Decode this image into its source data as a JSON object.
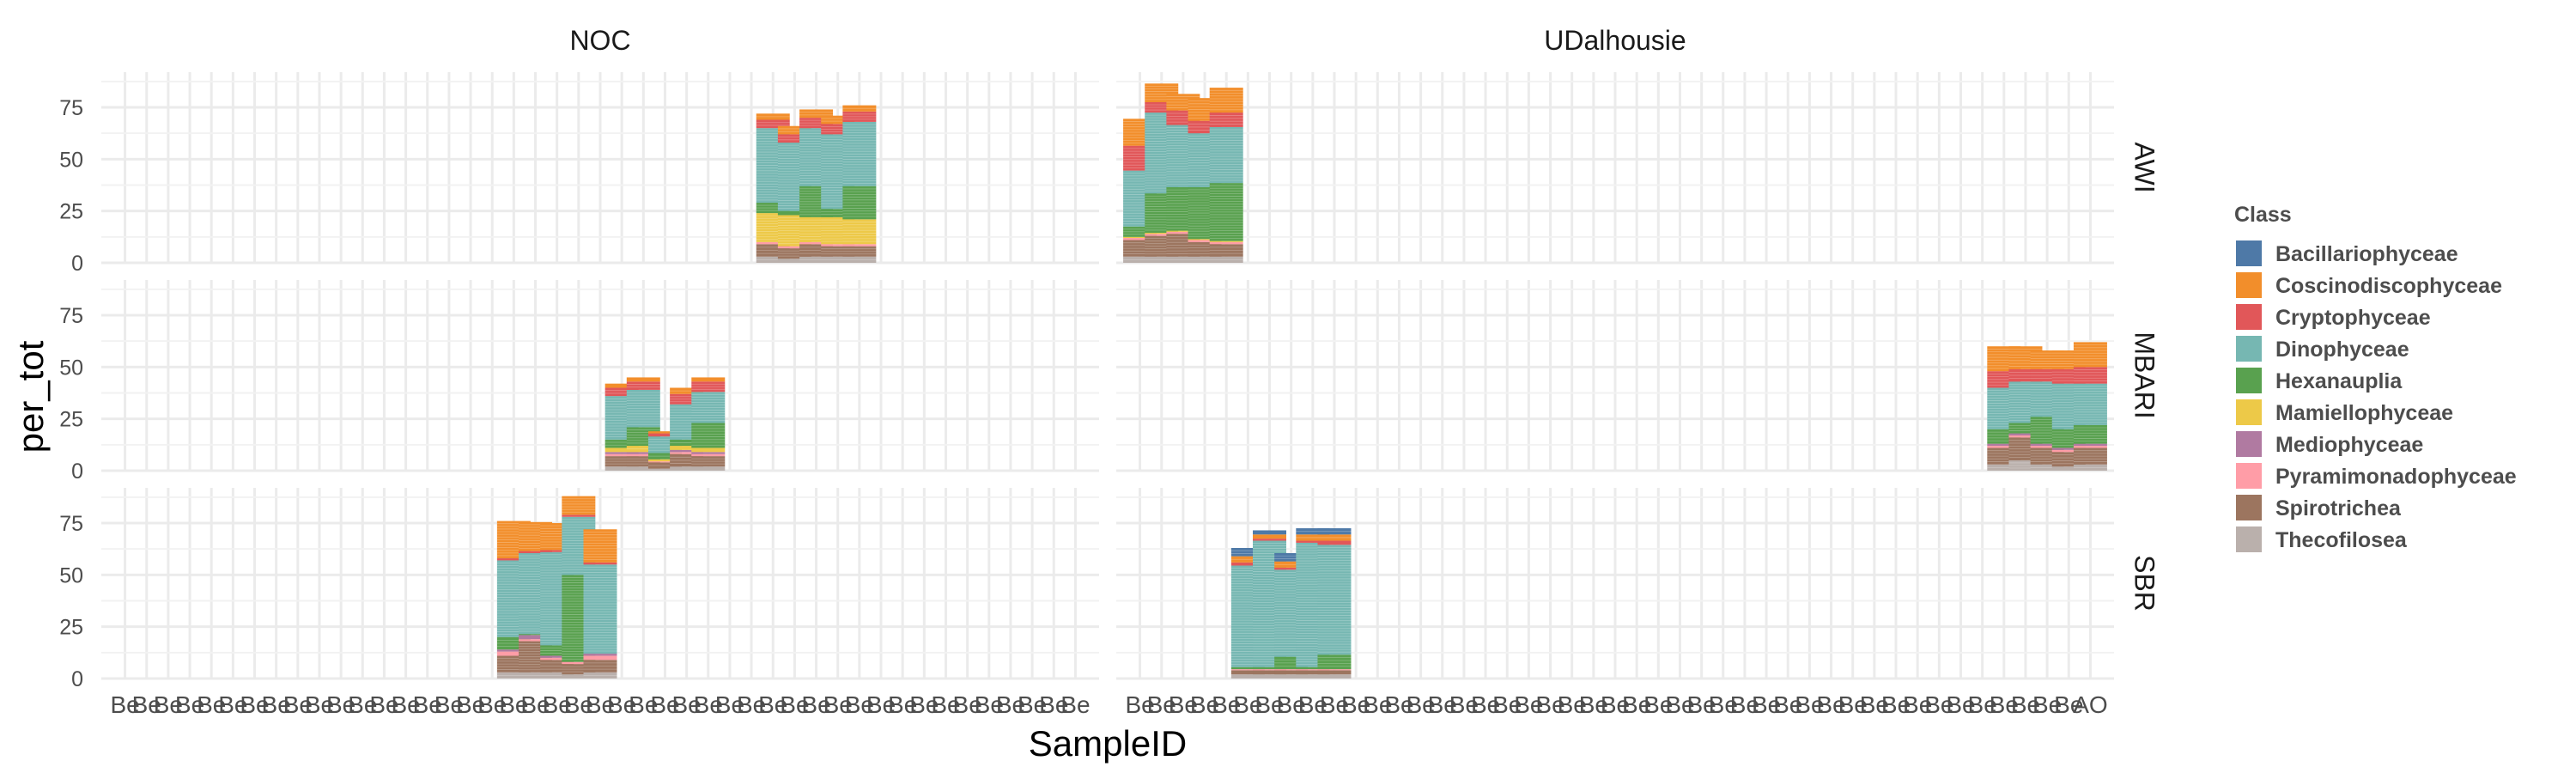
{
  "chart_data": {
    "type": "bar",
    "stacked": true,
    "facets": {
      "columns": [
        "NOC",
        "UDalhousie"
      ],
      "rows": [
        "AWI",
        "MBARI",
        "SBR"
      ]
    },
    "xlabel": "SampleID",
    "ylabel": "per_tot",
    "ylim": [
      0,
      92
    ],
    "yticks": [
      0,
      25,
      50,
      75
    ],
    "grid": true,
    "legend": {
      "title": "Class",
      "position": "right",
      "entries": [
        {
          "name": "Bacillariophyceae",
          "color": "#4e79a7"
        },
        {
          "name": "Coscinodiscophyceae",
          "color": "#f28e2b"
        },
        {
          "name": "Cryptophyceae",
          "color": "#e15759"
        },
        {
          "name": "Dinophyceae",
          "color": "#76b7b2"
        },
        {
          "name": "Hexanauplia",
          "color": "#59a14f"
        },
        {
          "name": "Mamiellophyceae",
          "color": "#edc948"
        },
        {
          "name": "Mediophyceae",
          "color": "#b07aa1"
        },
        {
          "name": "Pyramimonadophyceae",
          "color": "#ff9da7"
        },
        {
          "name": "Spirotrichea",
          "color": "#9c755f"
        },
        {
          "name": "Thecofilosea",
          "color": "#bab0ac"
        }
      ]
    },
    "class_order": [
      "Thecofilosea",
      "Spirotrichea",
      "Pyramimonadophyceae",
      "Mediophyceae",
      "Mamiellophyceae",
      "Hexanauplia",
      "Dinophyceae",
      "Cryptophyceae",
      "Coscinodiscophyceae",
      "Bacillariophyceae"
    ],
    "x_tick_labels": {
      "NOC": [
        "Be",
        "Be",
        "Be",
        "Be",
        "Be",
        "Be",
        "Be",
        "Be",
        "Be",
        "Be",
        "Be",
        "Be",
        "Be",
        "Be",
        "Be",
        "Be",
        "Be",
        "Be",
        "Be",
        "Be",
        "Be",
        "Be",
        "Be",
        "Be",
        "Be",
        "Be",
        "Be",
        "Be",
        "Be",
        "Be",
        "Be",
        "Be",
        "Be",
        "Be",
        "Be",
        "Be",
        "Be",
        "Be",
        "Be",
        "Be",
        "Be",
        "Be",
        "Be",
        "Be",
        "Be"
      ],
      "UDalhousie": [
        "Be",
        "Be",
        "Be",
        "Be",
        "Be",
        "Be",
        "Be",
        "Be",
        "Be",
        "Be",
        "Be",
        "Be",
        "Be",
        "Be",
        "Be",
        "Be",
        "Be",
        "Be",
        "Be",
        "Be",
        "Be",
        "Be",
        "Be",
        "Be",
        "Be",
        "Be",
        "Be",
        "Be",
        "Be",
        "Be",
        "Be",
        "Be",
        "Be",
        "Be",
        "Be",
        "Be",
        "Be",
        "Be",
        "Be",
        "Be",
        "Be",
        "Be",
        "Be",
        "Be",
        "AO"
      ]
    },
    "panels": [
      {
        "row": "AWI",
        "col": "NOC",
        "bars": [
          {
            "index": 30,
            "values": {
              "Thecofilosea": 3,
              "Spirotrichea": 6,
              "Pyramimonadophyceae": 1,
              "Mamiellophyceae": 14,
              "Hexanauplia": 5,
              "Dinophyceae": 36,
              "Cryptophyceae": 4,
              "Coscinodiscophyceae": 3
            }
          },
          {
            "index": 31,
            "values": {
              "Thecofilosea": 2,
              "Spirotrichea": 5,
              "Pyramimonadophyceae": 1,
              "Mamiellophyceae": 15,
              "Hexanauplia": 2,
              "Dinophyceae": 33,
              "Cryptophyceae": 4,
              "Coscinodiscophyceae": 4
            }
          },
          {
            "index": 32,
            "values": {
              "Thecofilosea": 3,
              "Spirotrichea": 6,
              "Pyramimonadophyceae": 1,
              "Mamiellophyceae": 12,
              "Hexanauplia": 15,
              "Dinophyceae": 28,
              "Cryptophyceae": 5,
              "Coscinodiscophyceae": 4
            }
          },
          {
            "index": 33,
            "values": {
              "Thecofilosea": 3,
              "Spirotrichea": 5,
              "Pyramimonadophyceae": 1,
              "Mamiellophyceae": 13,
              "Hexanauplia": 4,
              "Dinophyceae": 36,
              "Cryptophyceae": 5,
              "Coscinodiscophyceae": 4
            }
          },
          {
            "index": 34,
            "values": {
              "Thecofilosea": 3,
              "Spirotrichea": 5,
              "Pyramimonadophyceae": 1,
              "Mamiellophyceae": 12,
              "Hexanauplia": 16,
              "Dinophyceae": 31,
              "Cryptophyceae": 5,
              "Coscinodiscophyceae": 3
            }
          }
        ]
      },
      {
        "row": "AWI",
        "col": "UDalhousie",
        "bars": [
          {
            "index": 0,
            "values": {
              "Thecofilosea": 3,
              "Spirotrichea": 8,
              "Pyramimonadophyceae": 1,
              "Mamiellophyceae": 0.5,
              "Hexanauplia": 5,
              "Dinophyceae": 27,
              "Cryptophyceae": 12,
              "Coscinodiscophyceae": 13
            }
          },
          {
            "index": 1,
            "values": {
              "Thecofilosea": 3,
              "Spirotrichea": 10,
              "Pyramimonadophyceae": 1,
              "Mamiellophyceae": 0.5,
              "Hexanauplia": 19,
              "Dinophyceae": 39,
              "Cryptophyceae": 5,
              "Coscinodiscophyceae": 9
            }
          },
          {
            "index": 2,
            "values": {
              "Thecofilosea": 3,
              "Spirotrichea": 11,
              "Pyramimonadophyceae": 1,
              "Mamiellophyceae": 0.5,
              "Hexanauplia": 21,
              "Dinophyceae": 30,
              "Cryptophyceae": 7,
              "Coscinodiscophyceae": 8
            }
          },
          {
            "index": 3,
            "values": {
              "Thecofilosea": 3,
              "Spirotrichea": 7,
              "Pyramimonadophyceae": 1,
              "Mamiellophyceae": 0.5,
              "Hexanauplia": 25,
              "Dinophyceae": 26,
              "Cryptophyceae": 6,
              "Coscinodiscophyceae": 11
            }
          },
          {
            "index": 4,
            "values": {
              "Thecofilosea": 3,
              "Spirotrichea": 6,
              "Pyramimonadophyceae": 1,
              "Mamiellophyceae": 0.5,
              "Hexanauplia": 28,
              "Dinophyceae": 27,
              "Cryptophyceae": 7,
              "Coscinodiscophyceae": 12
            }
          }
        ]
      },
      {
        "row": "MBARI",
        "col": "NOC",
        "bars": [
          {
            "index": 23,
            "values": {
              "Thecofilosea": 2,
              "Spirotrichea": 5,
              "Pyramimonadophyceae": 1,
              "Mediophyceae": 1,
              "Mamiellophyceae": 2,
              "Hexanauplia": 4,
              "Dinophyceae": 21,
              "Cryptophyceae": 4,
              "Coscinodiscophyceae": 2
            }
          },
          {
            "index": 24,
            "values": {
              "Thecofilosea": 2,
              "Spirotrichea": 5,
              "Pyramimonadophyceae": 1,
              "Mediophyceae": 1,
              "Mamiellophyceae": 3,
              "Hexanauplia": 9,
              "Dinophyceae": 18,
              "Cryptophyceae": 4,
              "Coscinodiscophyceae": 2
            }
          },
          {
            "index": 25,
            "values": {
              "Thecofilosea": 1,
              "Spirotrichea": 3,
              "Pyramimonadophyceae": 0.5,
              "Mamiellophyceae": 1,
              "Hexanauplia": 3,
              "Dinophyceae": 8,
              "Cryptophyceae": 1.5,
              "Coscinodiscophyceae": 1
            }
          },
          {
            "index": 26,
            "values": {
              "Thecofilosea": 2,
              "Spirotrichea": 6,
              "Pyramimonadophyceae": 1,
              "Mediophyceae": 1,
              "Mamiellophyceae": 2,
              "Hexanauplia": 3,
              "Dinophyceae": 17,
              "Cryptophyceae": 5,
              "Coscinodiscophyceae": 3
            }
          },
          {
            "index": 27,
            "values": {
              "Thecofilosea": 2,
              "Spirotrichea": 5,
              "Pyramimonadophyceae": 1,
              "Mediophyceae": 1,
              "Mamiellophyceae": 2,
              "Hexanauplia": 12,
              "Dinophyceae": 15,
              "Cryptophyceae": 5,
              "Coscinodiscophyceae": 2
            }
          }
        ]
      },
      {
        "row": "MBARI",
        "col": "UDalhousie",
        "bars": [
          {
            "index": 40,
            "values": {
              "Thecofilosea": 3,
              "Spirotrichea": 8,
              "Pyramimonadophyceae": 1,
              "Mediophyceae": 1,
              "Hexanauplia": 7,
              "Dinophyceae": 20,
              "Cryptophyceae": 8,
              "Coscinodiscophyceae": 12
            }
          },
          {
            "index": 41,
            "values": {
              "Thecofilosea": 5,
              "Spirotrichea": 11,
              "Pyramimonadophyceae": 1,
              "Mediophyceae": 1,
              "Hexanauplia": 5,
              "Dinophyceae": 20,
              "Cryptophyceae": 6,
              "Coscinodiscophyceae": 11
            }
          },
          {
            "index": 42,
            "values": {
              "Thecofilosea": 3,
              "Spirotrichea": 8,
              "Pyramimonadophyceae": 1,
              "Mediophyceae": 1,
              "Hexanauplia": 13,
              "Dinophyceae": 17,
              "Cryptophyceae": 6,
              "Coscinodiscophyceae": 9
            }
          },
          {
            "index": 43,
            "values": {
              "Thecofilosea": 2,
              "Spirotrichea": 7,
              "Pyramimonadophyceae": 1,
              "Mediophyceae": 1,
              "Hexanauplia": 9,
              "Dinophyceae": 22,
              "Cryptophyceae": 7,
              "Coscinodiscophyceae": 9
            }
          },
          {
            "index": 44,
            "values": {
              "Thecofilosea": 3,
              "Spirotrichea": 8,
              "Pyramimonadophyceae": 1,
              "Mediophyceae": 1,
              "Hexanauplia": 9,
              "Dinophyceae": 20,
              "Cryptophyceae": 8,
              "Coscinodiscophyceae": 12
            }
          }
        ]
      },
      {
        "row": "SBR",
        "col": "NOC",
        "bars": [
          {
            "index": 18,
            "values": {
              "Thecofilosea": 3,
              "Spirotrichea": 8,
              "Pyramimonadophyceae": 2,
              "Mediophyceae": 1,
              "Hexanauplia": 6,
              "Dinophyceae": 37,
              "Cryptophyceae": 1,
              "Coscinodiscophyceae": 18
            }
          },
          {
            "index": 19,
            "values": {
              "Thecofilosea": 3,
              "Spirotrichea": 15,
              "Pyramimonadophyceae": 1,
              "Mediophyceae": 2,
              "Hexanauplia": 0.5,
              "Dinophyceae": 39,
              "Cryptophyceae": 1,
              "Coscinodiscophyceae": 14
            }
          },
          {
            "index": 20,
            "values": {
              "Thecofilosea": 3,
              "Spirotrichea": 6,
              "Pyramimonadophyceae": 1,
              "Mediophyceae": 1,
              "Hexanauplia": 5,
              "Dinophyceae": 45,
              "Cryptophyceae": 1,
              "Coscinodiscophyceae": 13
            }
          },
          {
            "index": 21,
            "values": {
              "Thecofilosea": 2,
              "Spirotrichea": 5,
              "Pyramimonadophyceae": 1,
              "Hexanauplia": 42,
              "Dinophyceae": 28,
              "Cryptophyceae": 1,
              "Coscinodiscophyceae": 9
            }
          },
          {
            "index": 22,
            "values": {
              "Thecofilosea": 3,
              "Spirotrichea": 6,
              "Pyramimonadophyceae": 2,
              "Mediophyceae": 1,
              "Dinophyceae": 43,
              "Cryptophyceae": 1,
              "Coscinodiscophyceae": 16
            }
          }
        ]
      },
      {
        "row": "SBR",
        "col": "UDalhousie",
        "bars": [
          {
            "index": 5,
            "values": {
              "Thecofilosea": 2,
              "Spirotrichea": 2,
              "Pyramimonadophyceae": 0.5,
              "Hexanauplia": 1,
              "Dinophyceae": 49,
              "Cryptophyceae": 1.5,
              "Coscinodiscophyceae": 3,
              "Bacillariophyceae": 4
            }
          },
          {
            "index": 6,
            "values": {
              "Thecofilosea": 2,
              "Spirotrichea": 2,
              "Pyramimonadophyceae": 0.5,
              "Hexanauplia": 1,
              "Dinophyceae": 61,
              "Cryptophyceae": 1,
              "Coscinodiscophyceae": 2,
              "Bacillariophyceae": 2
            }
          },
          {
            "index": 7,
            "values": {
              "Thecofilosea": 2,
              "Spirotrichea": 2,
              "Pyramimonadophyceae": 0.5,
              "Hexanauplia": 6,
              "Dinophyceae": 42,
              "Cryptophyceae": 1,
              "Coscinodiscophyceae": 3,
              "Bacillariophyceae": 4
            }
          },
          {
            "index": 8,
            "values": {
              "Thecofilosea": 2,
              "Spirotrichea": 2,
              "Pyramimonadophyceae": 0.5,
              "Hexanauplia": 1,
              "Dinophyceae": 60,
              "Cryptophyceae": 1,
              "Coscinodiscophyceae": 3,
              "Bacillariophyceae": 3
            }
          },
          {
            "index": 9,
            "values": {
              "Thecofilosea": 2,
              "Spirotrichea": 2,
              "Pyramimonadophyceae": 0.5,
              "Hexanauplia": 7,
              "Dinophyceae": 53,
              "Cryptophyceae": 2,
              "Coscinodiscophyceae": 3,
              "Bacillariophyceae": 3
            }
          }
        ]
      }
    ]
  }
}
